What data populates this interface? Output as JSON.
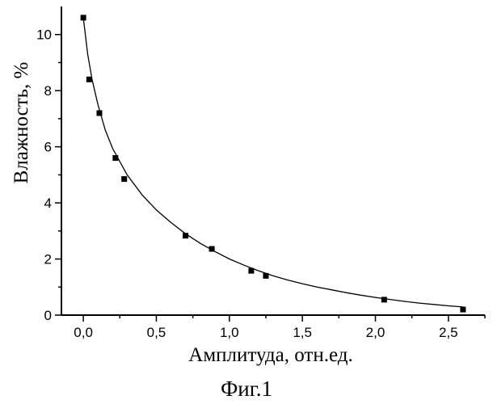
{
  "chart_data": {
    "type": "scatter",
    "xlabel": "Амплитуда, отн.ед.",
    "ylabel": "Влажность, %",
    "caption": "Фиг.1",
    "xlim": [
      -0.15,
      2.75
    ],
    "ylim": [
      0,
      11
    ],
    "x_ticks": [
      0.0,
      0.5,
      1.0,
      1.5,
      2.0,
      2.5
    ],
    "x_tick_labels": [
      "0,0",
      "0,5",
      "1,0",
      "1,5",
      "2,0",
      "2,5"
    ],
    "y_ticks": [
      0,
      2,
      4,
      6,
      8,
      10
    ],
    "y_tick_labels": [
      "0",
      "2",
      "4",
      "6",
      "8",
      "10"
    ],
    "grid": false,
    "series": [
      {
        "marker": "square",
        "points": [
          {
            "x": 0.0,
            "y": 10.6
          },
          {
            "x": 0.04,
            "y": 8.4
          },
          {
            "x": 0.11,
            "y": 7.2
          },
          {
            "x": 0.22,
            "y": 5.6
          },
          {
            "x": 0.28,
            "y": 4.85
          },
          {
            "x": 0.7,
            "y": 2.83
          },
          {
            "x": 0.88,
            "y": 2.36
          },
          {
            "x": 1.15,
            "y": 1.58
          },
          {
            "x": 1.25,
            "y": 1.4
          },
          {
            "x": 2.06,
            "y": 0.55
          },
          {
            "x": 2.6,
            "y": 0.2
          }
        ]
      }
    ],
    "fit_curve": {
      "style": "solid-line",
      "points": [
        {
          "x": 0.0,
          "y": 10.6
        },
        {
          "x": 0.03,
          "y": 9.3
        },
        {
          "x": 0.06,
          "y": 8.4
        },
        {
          "x": 0.1,
          "y": 7.5
        },
        {
          "x": 0.15,
          "y": 6.6
        },
        {
          "x": 0.2,
          "y": 5.95
        },
        {
          "x": 0.3,
          "y": 5.0
        },
        {
          "x": 0.4,
          "y": 4.3
        },
        {
          "x": 0.5,
          "y": 3.75
        },
        {
          "x": 0.6,
          "y": 3.3
        },
        {
          "x": 0.7,
          "y": 2.9
        },
        {
          "x": 0.8,
          "y": 2.56
        },
        {
          "x": 0.9,
          "y": 2.27
        },
        {
          "x": 1.0,
          "y": 2.0
        },
        {
          "x": 1.1,
          "y": 1.78
        },
        {
          "x": 1.2,
          "y": 1.58
        },
        {
          "x": 1.3,
          "y": 1.4
        },
        {
          "x": 1.4,
          "y": 1.25
        },
        {
          "x": 1.5,
          "y": 1.12
        },
        {
          "x": 1.6,
          "y": 1.0
        },
        {
          "x": 1.7,
          "y": 0.9
        },
        {
          "x": 1.8,
          "y": 0.8
        },
        {
          "x": 1.9,
          "y": 0.71
        },
        {
          "x": 2.0,
          "y": 0.63
        },
        {
          "x": 2.1,
          "y": 0.56
        },
        {
          "x": 2.2,
          "y": 0.49
        },
        {
          "x": 2.3,
          "y": 0.43
        },
        {
          "x": 2.4,
          "y": 0.38
        },
        {
          "x": 2.5,
          "y": 0.33
        },
        {
          "x": 2.6,
          "y": 0.29
        }
      ]
    }
  }
}
